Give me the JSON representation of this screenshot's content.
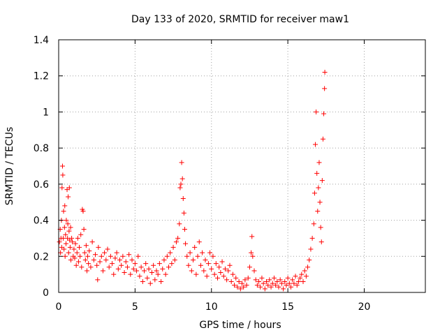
{
  "chart_data": {
    "type": "scatter",
    "title": "Day 133 of 2020, SRMTID for receiver maw1",
    "xlabel": "GPS time / hours",
    "ylabel": "SRMTID / TECUs",
    "xlim": [
      0,
      24
    ],
    "ylim": [
      0,
      1.4
    ],
    "xticks": [
      0,
      5,
      10,
      15,
      20
    ],
    "yticks": [
      0,
      0.2,
      0.4,
      0.6,
      0.8,
      1,
      1.2,
      1.4
    ],
    "xtick_labels": [
      "0",
      "5",
      "10",
      "15",
      "20"
    ],
    "ytick_labels": [
      "0",
      "0.2",
      "0.4",
      "0.6",
      "0.8",
      "1",
      "1.2",
      "1.4"
    ],
    "grid": true,
    "marker": "+",
    "color": "#ff0000",
    "series": [
      {
        "name": "SRMTID",
        "points": [
          [
            0.05,
            0.28
          ],
          [
            0.1,
            0.35
          ],
          [
            0.12,
            0.22
          ],
          [
            0.15,
            0.3
          ],
          [
            0.18,
            0.4
          ],
          [
            0.2,
            0.25
          ],
          [
            0.22,
            0.58
          ],
          [
            0.25,
            0.7
          ],
          [
            0.27,
            0.65
          ],
          [
            0.3,
            0.3
          ],
          [
            0.32,
            0.45
          ],
          [
            0.35,
            0.24
          ],
          [
            0.38,
            0.36
          ],
          [
            0.4,
            0.48
          ],
          [
            0.42,
            0.2
          ],
          [
            0.45,
            0.32
          ],
          [
            0.48,
            0.27
          ],
          [
            0.5,
            0.4
          ],
          [
            0.55,
            0.57
          ],
          [
            0.58,
            0.3
          ],
          [
            0.6,
            0.38
          ],
          [
            0.62,
            0.53
          ],
          [
            0.65,
            0.22
          ],
          [
            0.68,
            0.34
          ],
          [
            0.7,
            0.58
          ],
          [
            0.72,
            0.29
          ],
          [
            0.75,
            0.25
          ],
          [
            0.78,
            0.36
          ],
          [
            0.8,
            0.18
          ],
          [
            0.85,
            0.3
          ],
          [
            0.9,
            0.28
          ],
          [
            0.95,
            0.2
          ],
          [
            1.0,
            0.24
          ],
          [
            1.05,
            0.19
          ],
          [
            1.1,
            0.27
          ],
          [
            1.15,
            0.15
          ],
          [
            1.2,
            0.22
          ],
          [
            1.25,
            0.3
          ],
          [
            1.3,
            0.17
          ],
          [
            1.35,
            0.25
          ],
          [
            1.4,
            0.2
          ],
          [
            1.45,
            0.32
          ],
          [
            1.5,
            0.14
          ],
          [
            1.55,
            0.46
          ],
          [
            1.6,
            0.45
          ],
          [
            1.65,
            0.35
          ],
          [
            1.7,
            0.22
          ],
          [
            1.75,
            0.18
          ],
          [
            1.8,
            0.26
          ],
          [
            1.85,
            0.12
          ],
          [
            1.9,
            0.2
          ],
          [
            1.95,
            0.16
          ],
          [
            2.0,
            0.23
          ],
          [
            2.1,
            0.14
          ],
          [
            2.2,
            0.28
          ],
          [
            2.3,
            0.18
          ],
          [
            2.4,
            0.21
          ],
          [
            2.5,
            0.15
          ],
          [
            2.55,
            0.07
          ],
          [
            2.6,
            0.25
          ],
          [
            2.7,
            0.17
          ],
          [
            2.8,
            0.2
          ],
          [
            2.9,
            0.12
          ],
          [
            3.0,
            0.22
          ],
          [
            3.1,
            0.18
          ],
          [
            3.2,
            0.24
          ],
          [
            3.3,
            0.14
          ],
          [
            3.4,
            0.2
          ],
          [
            3.5,
            0.16
          ],
          [
            3.6,
            0.1
          ],
          [
            3.7,
            0.19
          ],
          [
            3.8,
            0.22
          ],
          [
            3.9,
            0.13
          ],
          [
            4.0,
            0.18
          ],
          [
            4.1,
            0.15
          ],
          [
            4.2,
            0.2
          ],
          [
            4.3,
            0.11
          ],
          [
            4.4,
            0.17
          ],
          [
            4.5,
            0.14
          ],
          [
            4.6,
            0.21
          ],
          [
            4.7,
            0.1
          ],
          [
            4.8,
            0.18
          ],
          [
            4.9,
            0.13
          ],
          [
            5.0,
            0.16
          ],
          [
            5.1,
            0.12
          ],
          [
            5.2,
            0.2
          ],
          [
            5.3,
            0.09
          ],
          [
            5.4,
            0.14
          ],
          [
            5.5,
            0.06
          ],
          [
            5.6,
            0.12
          ],
          [
            5.7,
            0.16
          ],
          [
            5.8,
            0.08
          ],
          [
            5.9,
            0.13
          ],
          [
            6.0,
            0.05
          ],
          [
            6.1,
            0.11
          ],
          [
            6.2,
            0.15
          ],
          [
            6.3,
            0.07
          ],
          [
            6.4,
            0.12
          ],
          [
            6.5,
            0.1
          ],
          [
            6.6,
            0.16
          ],
          [
            6.7,
            0.06
          ],
          [
            6.8,
            0.13
          ],
          [
            6.9,
            0.18
          ],
          [
            7.0,
            0.1
          ],
          [
            7.1,
            0.2
          ],
          [
            7.2,
            0.14
          ],
          [
            7.3,
            0.22
          ],
          [
            7.4,
            0.16
          ],
          [
            7.5,
            0.25
          ],
          [
            7.6,
            0.18
          ],
          [
            7.7,
            0.28
          ],
          [
            7.8,
            0.3
          ],
          [
            7.9,
            0.38
          ],
          [
            7.95,
            0.58
          ],
          [
            8.0,
            0.6
          ],
          [
            8.05,
            0.72
          ],
          [
            8.1,
            0.63
          ],
          [
            8.15,
            0.52
          ],
          [
            8.2,
            0.44
          ],
          [
            8.25,
            0.35
          ],
          [
            8.3,
            0.27
          ],
          [
            8.4,
            0.2
          ],
          [
            8.5,
            0.15
          ],
          [
            8.6,
            0.22
          ],
          [
            8.7,
            0.12
          ],
          [
            8.8,
            0.18
          ],
          [
            8.9,
            0.25
          ],
          [
            9.0,
            0.1
          ],
          [
            9.1,
            0.2
          ],
          [
            9.2,
            0.28
          ],
          [
            9.3,
            0.15
          ],
          [
            9.4,
            0.22
          ],
          [
            9.5,
            0.12
          ],
          [
            9.6,
            0.18
          ],
          [
            9.7,
            0.09
          ],
          [
            9.8,
            0.16
          ],
          [
            9.9,
            0.22
          ],
          [
            10.0,
            0.13
          ],
          [
            10.1,
            0.2
          ],
          [
            10.2,
            0.1
          ],
          [
            10.3,
            0.16
          ],
          [
            10.4,
            0.08
          ],
          [
            10.5,
            0.14
          ],
          [
            10.6,
            0.11
          ],
          [
            10.7,
            0.17
          ],
          [
            10.8,
            0.09
          ],
          [
            10.9,
            0.13
          ],
          [
            11.0,
            0.07
          ],
          [
            11.1,
            0.12
          ],
          [
            11.2,
            0.15
          ],
          [
            11.3,
            0.06
          ],
          [
            11.4,
            0.1
          ],
          [
            11.5,
            0.04
          ],
          [
            11.6,
            0.08
          ],
          [
            11.7,
            0.03
          ],
          [
            11.8,
            0.06
          ],
          [
            11.9,
            0.02
          ],
          [
            12.0,
            0.05
          ],
          [
            12.1,
            0.03
          ],
          [
            12.2,
            0.07
          ],
          [
            12.3,
            0.04
          ],
          [
            12.4,
            0.08
          ],
          [
            12.5,
            0.14
          ],
          [
            12.6,
            0.22
          ],
          [
            12.65,
            0.31
          ],
          [
            12.7,
            0.2
          ],
          [
            12.8,
            0.12
          ],
          [
            12.9,
            0.07
          ],
          [
            13.0,
            0.04
          ],
          [
            13.1,
            0.06
          ],
          [
            13.2,
            0.03
          ],
          [
            13.3,
            0.08
          ],
          [
            13.4,
            0.05
          ],
          [
            13.5,
            0.02
          ],
          [
            13.6,
            0.06
          ],
          [
            13.7,
            0.04
          ],
          [
            13.8,
            0.07
          ],
          [
            13.9,
            0.03
          ],
          [
            14.0,
            0.05
          ],
          [
            14.1,
            0.08
          ],
          [
            14.2,
            0.04
          ],
          [
            14.3,
            0.06
          ],
          [
            14.4,
            0.03
          ],
          [
            14.5,
            0.07
          ],
          [
            14.6,
            0.05
          ],
          [
            14.7,
            0.02
          ],
          [
            14.8,
            0.06
          ],
          [
            14.9,
            0.04
          ],
          [
            15.0,
            0.08
          ],
          [
            15.1,
            0.05
          ],
          [
            15.2,
            0.03
          ],
          [
            15.3,
            0.07
          ],
          [
            15.4,
            0.05
          ],
          [
            15.5,
            0.09
          ],
          [
            15.6,
            0.04
          ],
          [
            15.7,
            0.06
          ],
          [
            15.8,
            0.08
          ],
          [
            15.9,
            0.1
          ],
          [
            16.0,
            0.06
          ],
          [
            16.1,
            0.12
          ],
          [
            16.2,
            0.09
          ],
          [
            16.3,
            0.14
          ],
          [
            16.4,
            0.18
          ],
          [
            16.5,
            0.24
          ],
          [
            16.6,
            0.3
          ],
          [
            16.7,
            0.38
          ],
          [
            16.75,
            0.55
          ],
          [
            16.8,
            0.82
          ],
          [
            16.85,
            1.0
          ],
          [
            16.9,
            0.66
          ],
          [
            16.95,
            0.45
          ],
          [
            17.0,
            0.58
          ],
          [
            17.05,
            0.72
          ],
          [
            17.1,
            0.5
          ],
          [
            17.15,
            0.36
          ],
          [
            17.2,
            0.28
          ],
          [
            17.25,
            0.62
          ],
          [
            17.3,
            0.85
          ],
          [
            17.35,
            0.99
          ],
          [
            17.4,
            1.13
          ],
          [
            17.42,
            1.22
          ]
        ]
      }
    ]
  }
}
